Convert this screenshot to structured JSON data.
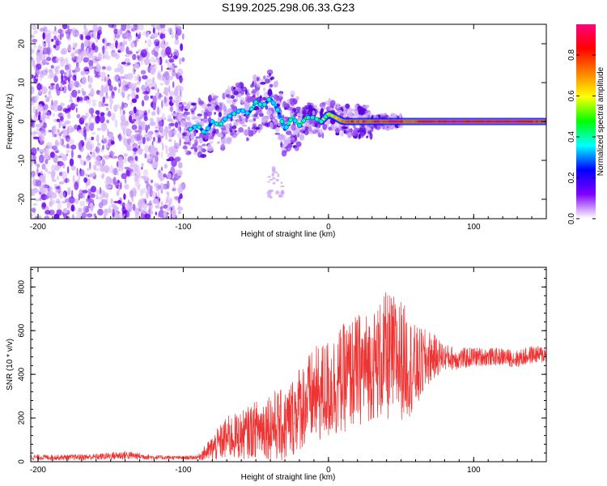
{
  "title": "S199.2025.298.06.33.G23",
  "chart_data": [
    {
      "type": "heatmap",
      "name": "spectrogram",
      "xlabel": "Height of straight line (km)",
      "ylabel": "Frequency (Hz)",
      "xlim": [
        -205,
        150
      ],
      "ylim": [
        -25,
        25
      ],
      "xticks": [
        -200,
        -100,
        0,
        100
      ],
      "yticks": [
        -20,
        -10,
        0,
        10,
        20
      ],
      "xtick_labels": [
        "-200",
        "-100",
        "0",
        "100"
      ],
      "ytick_labels": [
        "-20",
        "-10",
        "0",
        "10",
        "20"
      ],
      "colorbar": {
        "label": "Normalized spectral amplitude",
        "range": [
          0,
          0.95
        ],
        "ticks": [
          0,
          0.2,
          0.4,
          0.6,
          0.8
        ],
        "tick_labels": [
          "0.0",
          "0.2",
          "0.4",
          "0.6",
          "0.8"
        ],
        "colors": [
          "#ffffff",
          "#8000ff",
          "#0000ff",
          "#00ffff",
          "#00ff00",
          "#ffff00",
          "#ff8000",
          "#ff0000",
          "#ff0080"
        ]
      },
      "ridge": {
        "x": [
          -95,
          -90,
          -85,
          -80,
          -75,
          -70,
          -65,
          -60,
          -55,
          -50,
          -45,
          -40,
          -35,
          -30,
          -25,
          -20,
          -15,
          -10,
          -5,
          0,
          5,
          10,
          20,
          40,
          60,
          80,
          100,
          120,
          140,
          150
        ],
        "y": [
          -2,
          -1,
          -3,
          0,
          -1,
          1,
          2,
          3,
          2,
          5,
          4,
          6,
          3,
          -2,
          1,
          -1,
          1,
          1,
          0,
          2,
          1,
          0,
          0,
          0,
          0,
          0,
          0,
          0,
          0,
          0
        ],
        "amplitude": [
          0.3,
          0.3,
          0.3,
          0.3,
          0.35,
          0.3,
          0.35,
          0.3,
          0.3,
          0.35,
          0.3,
          0.3,
          0.3,
          0.3,
          0.4,
          0.45,
          0.5,
          0.55,
          0.6,
          0.55,
          0.65,
          0.75,
          0.8,
          0.85,
          0.8,
          0.9,
          0.85,
          0.9,
          0.85,
          0.8
        ]
      }
    },
    {
      "type": "line",
      "name": "snr",
      "xlabel": "Height of straight line (km)",
      "ylabel": "SNR (10 * v/v)",
      "xlim": [
        -205,
        150
      ],
      "ylim": [
        0,
        890
      ],
      "xticks": [
        -200,
        -100,
        0,
        100
      ],
      "yticks": [
        0,
        200,
        400,
        600,
        800
      ],
      "xtick_labels": [
        "-200",
        "-100",
        "0",
        "100"
      ],
      "ytick_labels": [
        "0",
        "200",
        "400",
        "600",
        "800"
      ],
      "color": "#ee3333",
      "series": [
        {
          "name": "SNR",
          "x": [
            -205,
            -180,
            -160,
            -140,
            -120,
            -100,
            -90,
            -80,
            -70,
            -60,
            -50,
            -40,
            -30,
            -20,
            -10,
            0,
            10,
            20,
            30,
            40,
            50,
            60,
            70,
            80,
            90,
            100,
            110,
            120,
            130,
            140,
            150
          ],
          "y": [
            20,
            20,
            22,
            30,
            20,
            18,
            20,
            60,
            110,
            120,
            150,
            170,
            160,
            250,
            300,
            330,
            380,
            420,
            440,
            480,
            470,
            420,
            480,
            480,
            470,
            480,
            480,
            480,
            470,
            490,
            490
          ],
          "spread": [
            12,
            12,
            14,
            20,
            10,
            8,
            10,
            60,
            100,
            110,
            130,
            160,
            170,
            200,
            220,
            240,
            250,
            260,
            250,
            300,
            280,
            200,
            120,
            60,
            50,
            45,
            40,
            40,
            40,
            40,
            40
          ]
        }
      ]
    }
  ]
}
